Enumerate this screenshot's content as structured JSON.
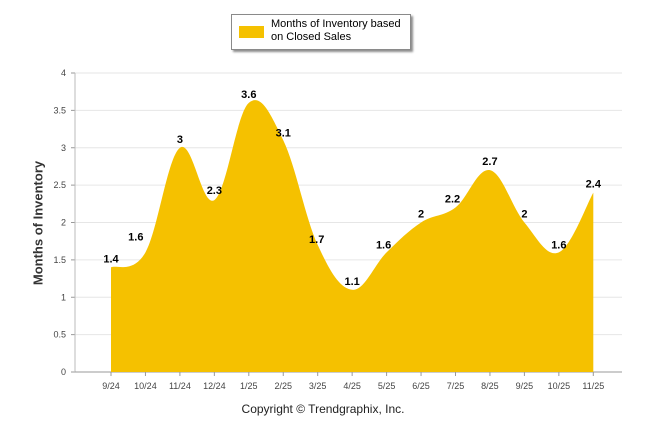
{
  "chart_data": {
    "type": "area",
    "categories": [
      "9/24",
      "10/24",
      "11/24",
      "12/24",
      "1/25",
      "2/25",
      "3/25",
      "4/25",
      "5/25",
      "6/25",
      "7/25",
      "8/25",
      "9/25",
      "10/25",
      "11/25"
    ],
    "series": [
      {
        "name": "Months of Inventory based on Closed Sales",
        "values": [
          1.4,
          1.6,
          3,
          2.3,
          3.6,
          3.1,
          1.7,
          1.1,
          1.6,
          2,
          2.2,
          2.7,
          2,
          1.6,
          2.4
        ]
      }
    ],
    "data_labels": [
      "1.4",
      "1.6",
      "3",
      "2.3",
      "3.6",
      "3.1",
      "1.7",
      "1.1",
      "1.6",
      "2",
      "2.2",
      "2.7",
      "2",
      "1.6",
      "2.4"
    ],
    "y_ticks": [
      "0",
      "0.5",
      "1",
      "1.5",
      "2",
      "2.5",
      "3",
      "3.5",
      "4"
    ],
    "ylim": [
      0,
      4
    ],
    "ylabel": "Months of Inventory",
    "xlabel": "",
    "title": "",
    "legend_position": "top-center",
    "color": "#f5c100",
    "grid": true
  },
  "legend": {
    "label": "Months of Inventory based on Closed Sales"
  },
  "footer": {
    "copyright": "Copyright © Trendgraphix, Inc."
  }
}
